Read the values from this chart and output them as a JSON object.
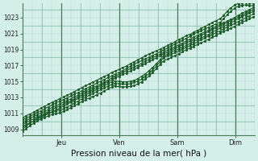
{
  "xlabel": "Pression niveau de la mer( hPa )",
  "bg_color": "#d4eee8",
  "plot_bg_color": "#d4eee8",
  "grid_color": "#b0d4cc",
  "grid_color_major": "#88bbaa",
  "line_color_dark": "#1a5c2a",
  "line_color_white": "#ffffff",
  "yticks": [
    1009,
    1011,
    1013,
    1015,
    1017,
    1019,
    1021,
    1023
  ],
  "ylim": [
    1008.2,
    1024.8
  ],
  "xlim": [
    0,
    96
  ],
  "xtick_positions": [
    16,
    40,
    64,
    88
  ],
  "xtick_labels": [
    "Jeu",
    "Ven",
    "Sam",
    "Dim"
  ],
  "vline_positions": [
    16,
    40,
    64,
    88
  ],
  "vline_color": "#4a7a5a",
  "num_lines": 7,
  "xlabel_fontsize": 7.5
}
